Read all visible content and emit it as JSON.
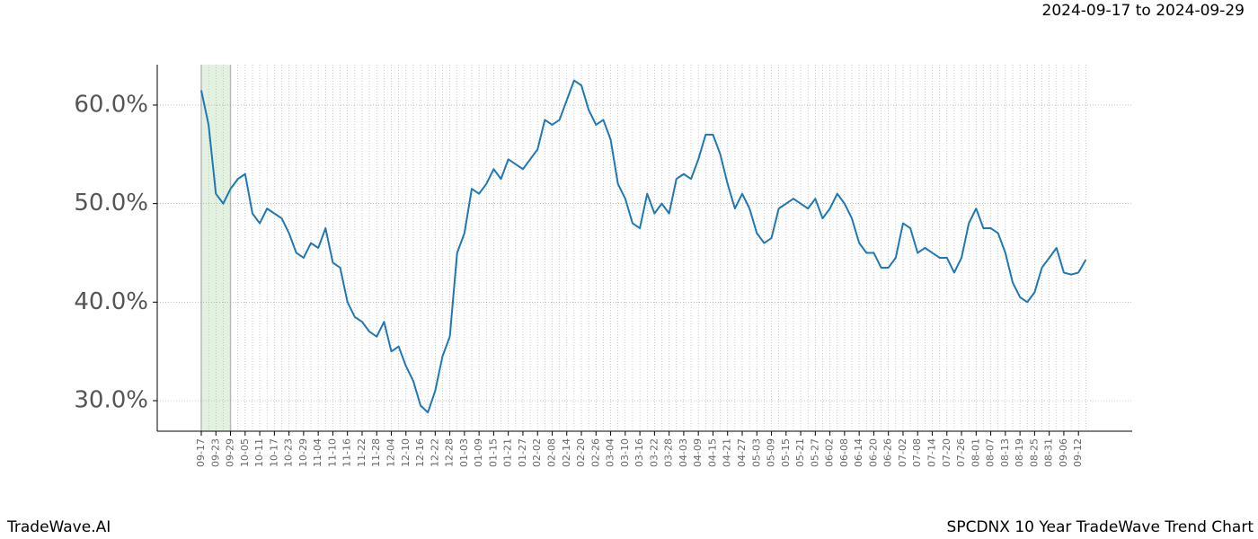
{
  "chart_data": {
    "type": "line",
    "title": "SPCDNX 10 Year TradeWave Trend Chart",
    "subtitle": "2024-09-17 to 2024-09-29",
    "categories": [
      "09-17",
      null,
      "09-23",
      null,
      "09-29",
      null,
      "10-05",
      null,
      "10-11",
      null,
      "10-17",
      null,
      "10-23",
      null,
      "10-29",
      null,
      "11-04",
      null,
      "11-10",
      null,
      "11-16",
      null,
      "11-22",
      null,
      "11-28",
      null,
      "12-04",
      null,
      "12-10",
      null,
      "12-16",
      null,
      "12-22",
      null,
      "12-28",
      null,
      "01-03",
      null,
      "01-09",
      null,
      "01-15",
      null,
      "01-21",
      null,
      "01-27",
      null,
      "02-02",
      null,
      "02-08",
      null,
      "02-14",
      null,
      "02-20",
      null,
      "02-26",
      null,
      "03-04",
      null,
      "03-10",
      null,
      "03-16",
      null,
      "03-22",
      null,
      "03-28",
      null,
      "04-03",
      null,
      "04-09",
      null,
      "04-15",
      null,
      "04-21",
      null,
      "04-27",
      null,
      "05-03",
      null,
      "05-09",
      null,
      "05-15",
      null,
      "05-21",
      null,
      "05-27",
      null,
      "06-02",
      null,
      "06-08",
      null,
      "06-14",
      null,
      "06-20",
      null,
      "06-26",
      null,
      "07-02",
      null,
      "07-08",
      null,
      "07-14",
      null,
      "07-20",
      null,
      "07-26",
      null,
      "08-01",
      null,
      "08-07",
      null,
      "08-13",
      null,
      "08-19",
      null,
      "08-25",
      null,
      "08-31",
      null,
      "09-06",
      null,
      "09-12",
      null
    ],
    "values": [
      61.5,
      58,
      51,
      50,
      51.5,
      52.5,
      53,
      49,
      48,
      49.5,
      49,
      48.5,
      47,
      45,
      44.5,
      46,
      45.5,
      47.5,
      44,
      43.5,
      40,
      38.5,
      38,
      37,
      36.5,
      38,
      35,
      35.5,
      33.5,
      32,
      29.5,
      28.8,
      31,
      34.5,
      36.5,
      45,
      47,
      51.5,
      51,
      52,
      53.5,
      52.5,
      54.5,
      54,
      53.5,
      54.5,
      55.5,
      58.5,
      58,
      58.5,
      60.5,
      62.5,
      62,
      59.5,
      58,
      58.5,
      56.5,
      52,
      50.5,
      48,
      47.5,
      51,
      49,
      50,
      49,
      52.5,
      53,
      52.5,
      54.5,
      57,
      57,
      55,
      52,
      49.5,
      51,
      49.5,
      47,
      46,
      46.5,
      49.5,
      50,
      50.5,
      50,
      49.5,
      50.5,
      48.5,
      49.5,
      51,
      50,
      48.5,
      46,
      45,
      45,
      43.5,
      43.5,
      44.5,
      48,
      47.5,
      45,
      45.5,
      45,
      44.5,
      44.5,
      43,
      44.5,
      48,
      49.5,
      47.5,
      47.5,
      47,
      45,
      42,
      40.5,
      40,
      41,
      43.5,
      44.5,
      45.5,
      43,
      42.8,
      43,
      44.3
    ],
    "color": "#1f77b4",
    "highlight": {
      "from": "09-17",
      "to": "09-29",
      "color": "#e3f1e0"
    },
    "ylim": [
      26.9,
      64.1
    ],
    "yticks": [
      {
        "value": 30,
        "label": "30.0%"
      },
      {
        "value": 40,
        "label": "40.0%"
      },
      {
        "value": 50,
        "label": "50.0%"
      },
      {
        "value": 60,
        "label": "60.0%"
      }
    ],
    "grid": true
  },
  "footer": {
    "brand": "TradeWave.AI"
  }
}
